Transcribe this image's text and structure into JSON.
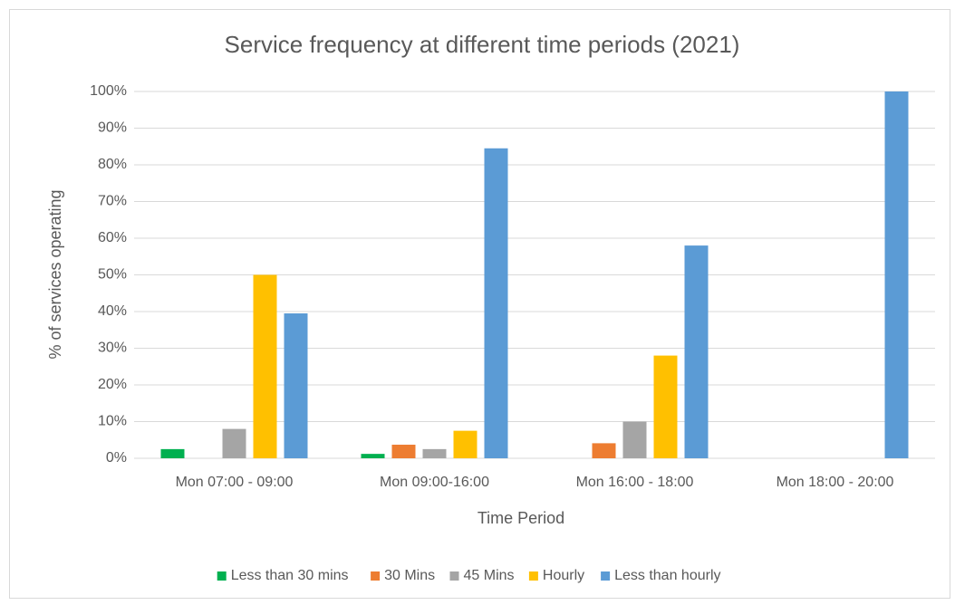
{
  "chart_data": {
    "type": "bar",
    "title": "Service frequency at different time periods (2021)",
    "x_label": "Time Period",
    "y_label": "% of services operating",
    "categories": [
      "Mon 07:00 - 09:00",
      "Mon 09:00-16:00",
      "Mon 16:00 - 18:00",
      "Mon 18:00 - 20:00"
    ],
    "series": [
      {
        "name": "Less than 30 mins",
        "color": "#00b050",
        "values": [
          2.5,
          1.2,
          0,
          0
        ]
      },
      {
        "name": "30 Mins",
        "color": "#ed7d31",
        "values": [
          0,
          3.7,
          4.1,
          0
        ]
      },
      {
        "name": "45 Mins",
        "color": "#a5a5a5",
        "values": [
          8,
          2.5,
          10,
          0
        ]
      },
      {
        "name": "Hourly",
        "color": "#ffc000",
        "values": [
          50,
          7.5,
          28,
          0
        ]
      },
      {
        "name": "Less than hourly",
        "color": "#5b9bd5",
        "values": [
          39.5,
          84.5,
          58,
          100
        ]
      }
    ],
    "ylim": [
      0,
      100
    ],
    "yticks": [
      {
        "value": 0,
        "label": "0%"
      },
      {
        "value": 10,
        "label": "10%"
      },
      {
        "value": 20,
        "label": "20%"
      },
      {
        "value": 30,
        "label": "30%"
      },
      {
        "value": 40,
        "label": "40%"
      },
      {
        "value": 50,
        "label": "50%"
      },
      {
        "value": 60,
        "label": "60%"
      },
      {
        "value": 70,
        "label": "70%"
      },
      {
        "value": 80,
        "label": "80%"
      },
      {
        "value": 90,
        "label": "90%"
      },
      {
        "value": 100,
        "label": "100%"
      }
    ],
    "grid": true,
    "legend": "bottom"
  }
}
